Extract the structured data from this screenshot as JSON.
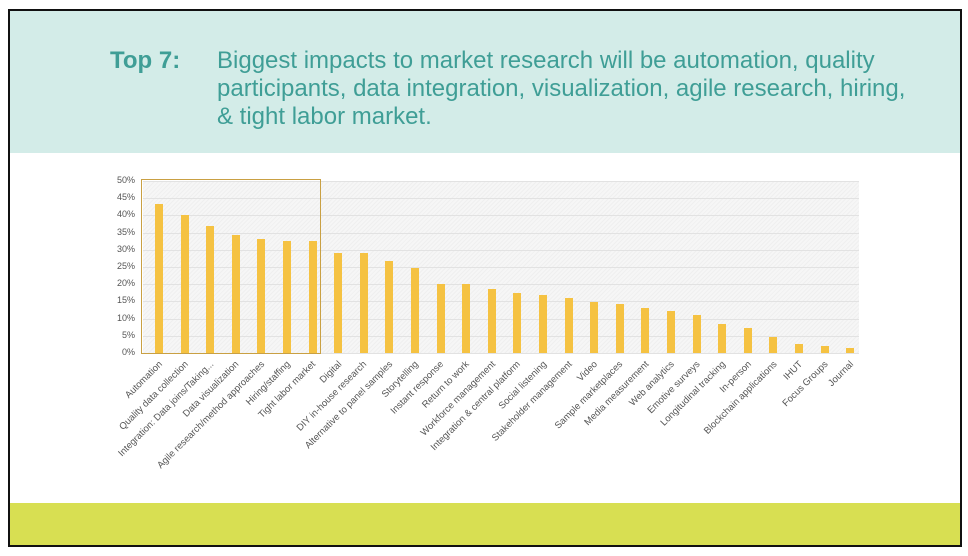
{
  "slide": {
    "title_prefix": "Top 7:",
    "title_text": "Biggest impacts to market research will be automation, quality participants, data integration, visualization, agile research, hiring, & tight labor market.",
    "colors": {
      "header_bg": "#d3ece8",
      "title": "#3f9e96",
      "footer_band": "#d8df52",
      "bar": "#f5c242",
      "highlight_border": "#c9a043"
    }
  },
  "chart_data": {
    "type": "bar",
    "title": "",
    "xlabel": "",
    "ylabel": "",
    "ylim": [
      0,
      50
    ],
    "yticks": [
      "0%",
      "5%",
      "10%",
      "15%",
      "20%",
      "25%",
      "30%",
      "35%",
      "40%",
      "45%",
      "50%"
    ],
    "grid": true,
    "highlight": {
      "from_index": 0,
      "to_index": 6,
      "label": "Top 7"
    },
    "categories": [
      "Automation",
      "Quality data collection",
      "Integration: Data joins/Taking...",
      "Data visualization",
      "Agile research/method approaches",
      "Hiring/staffing",
      "Tight labor market",
      "Digital",
      "DIY in-house research",
      "Alternative to panel samples",
      "Storytelling",
      "Instant response",
      "Return to work",
      "Workforce management",
      "Integration & central platform",
      "Social listening",
      "Stakeholder management",
      "Video",
      "Sample marketplaces",
      "Media measurement",
      "Web analytics",
      "Emotive surveys",
      "Longitudinal tracking",
      "In-person",
      "Blockchain applications",
      "IHUT",
      "Focus Groups",
      "Journal"
    ],
    "values": [
      43.3,
      40.1,
      36.9,
      34.3,
      33.1,
      32.6,
      32.6,
      29.1,
      29.1,
      26.7,
      24.7,
      20.1,
      20.1,
      18.6,
      17.4,
      16.9,
      16.0,
      14.8,
      14.2,
      13.1,
      12.2,
      11.0,
      8.4,
      7.3,
      4.7,
      2.6,
      2.0,
      1.5
    ]
  }
}
